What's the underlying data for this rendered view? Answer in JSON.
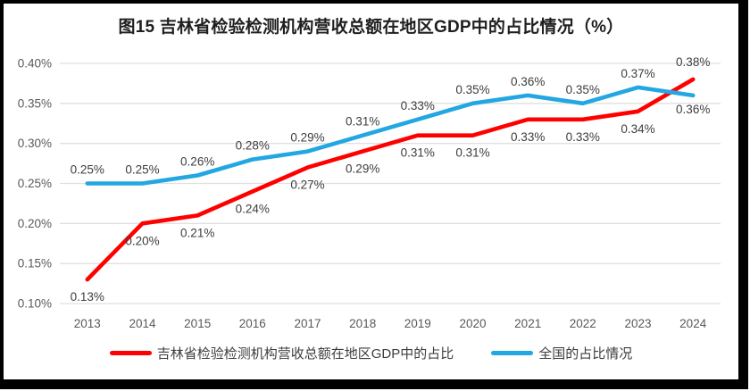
{
  "frame": {
    "background": "#ffffff",
    "border_color": "#000000"
  },
  "chart_data": {
    "type": "line",
    "title": "图15 吉林省检验检测机构营收总额在地区GDP中的占比情况（%）",
    "categories": [
      "2013",
      "2014",
      "2015",
      "2016",
      "2017",
      "2018",
      "2019",
      "2020",
      "2021",
      "2022",
      "2023",
      "2024"
    ],
    "series": [
      {
        "name": "吉林省检验检测机构营收总额在地区GDP中的占比",
        "color": "#FF0000",
        "values": [
          0.13,
          0.2,
          0.21,
          0.24,
          0.27,
          0.29,
          0.31,
          0.31,
          0.33,
          0.33,
          0.34,
          0.38
        ],
        "labels": [
          "0.13%",
          "0.20%",
          "0.21%",
          "0.24%",
          "0.27%",
          "0.29%",
          "0.31%",
          "0.31%",
          "0.33%",
          "0.33%",
          "0.34%",
          "0.38%"
        ],
        "label_placement": "below",
        "last_label_placement": "above"
      },
      {
        "name": "全国的占比情况",
        "color": "#22A7E2",
        "values": [
          0.25,
          0.25,
          0.26,
          0.28,
          0.29,
          0.31,
          0.33,
          0.35,
          0.36,
          0.35,
          0.37,
          0.36
        ],
        "labels": [
          "0.25%",
          "0.25%",
          "0.26%",
          "0.28%",
          "0.29%",
          "0.31%",
          "0.33%",
          "0.35%",
          "0.36%",
          "0.35%",
          "0.37%",
          "0.36%"
        ],
        "label_placement": "above",
        "last_label_placement": "below"
      }
    ],
    "ylim": [
      0.1,
      0.4
    ],
    "ytick_step": 0.05,
    "ytick_labels": [
      "0.10%",
      "0.15%",
      "0.20%",
      "0.25%",
      "0.30%",
      "0.35%",
      "0.40%"
    ],
    "unit": "%",
    "grid": "horizontal",
    "gridline_color": "#E0E0E0",
    "axis_text_color": "#595959",
    "data_label_color": "#3d3d3d",
    "legend_position": "bottom"
  }
}
